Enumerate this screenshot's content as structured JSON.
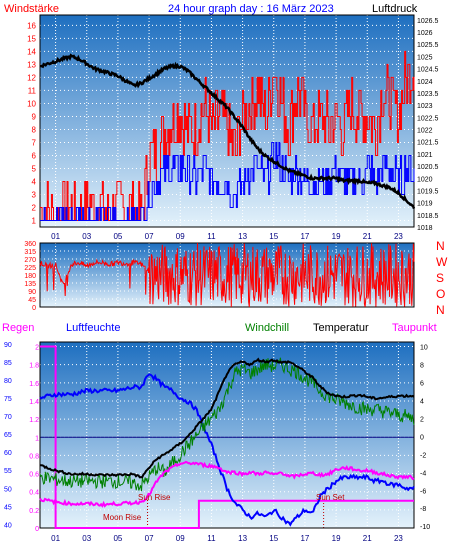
{
  "header": {
    "left_label": "Windstärke",
    "title": "24 hour graph day : 16 März 2023",
    "right_label": "Luftdruck"
  },
  "middle": {
    "compass": [
      "N",
      "W",
      "S",
      "O",
      "N"
    ]
  },
  "bottom_header": {
    "regen": "Regen",
    "luftfeuchte": "Luftfeuchte",
    "windchill": "Windchill",
    "temperatur": "Temperatur",
    "taupunkt": "Taupunkt"
  },
  "colors": {
    "wind_gust": "#ff0000",
    "wind_avg": "#0000ff",
    "pressure": "#000000",
    "direction": "#ff0000",
    "rain": "#ff00ff",
    "humidity": "#0000ff",
    "windchill": "#008000",
    "temperature": "#000000",
    "dewpoint": "#ff00ff",
    "sky_top": "#1e6fc0",
    "sky_bottom": "#e4f2fb"
  },
  "chart_data": [
    {
      "type": "line",
      "title": "24 hour graph day : 16 März 2023",
      "x_ticks": [
        "01",
        "03",
        "05",
        "07",
        "09",
        "11",
        "13",
        "15",
        "17",
        "19",
        "21",
        "23"
      ],
      "xlim": [
        0,
        24
      ],
      "y_left_label": "Windstärke",
      "y_left_ticks": [
        "1",
        "2",
        "3",
        "4",
        "5",
        "6",
        "7",
        "8",
        "9",
        "10",
        "11",
        "12",
        "13",
        "14",
        "15",
        "16"
      ],
      "y_left_lim": [
        0.5,
        16.8
      ],
      "y_right_label": "Luftdruck",
      "y_right_ticks": [
        "1018",
        "1018.5",
        "1019",
        "1019.5",
        "1020",
        "1020.5",
        "1021",
        "1021.5",
        "1022",
        "1022.5",
        "1023",
        "1023.5",
        "1024",
        "1024.5",
        "1025",
        "1025.5",
        "1026",
        "1026.5"
      ],
      "y_right_lim": [
        1018,
        1026.7
      ],
      "grid": true,
      "series": [
        {
          "name": "Luftdruck",
          "axis": "right",
          "x": [
            0,
            0.5,
            1,
            1.5,
            2,
            2.5,
            3,
            3.5,
            4,
            4.5,
            5,
            5.5,
            6,
            6.5,
            7,
            7.5,
            8,
            8.5,
            9,
            9.5,
            10,
            10.5,
            11,
            11.5,
            12,
            12.5,
            13,
            13.5,
            14,
            14.5,
            15,
            15.5,
            16,
            16.5,
            17,
            17.5,
            18,
            18.5,
            19,
            19.5,
            20,
            20.5,
            21,
            21.5,
            22,
            22.5,
            23,
            23.5,
            24
          ],
          "values": [
            1024.6,
            1024.7,
            1024.8,
            1024.9,
            1025.0,
            1024.9,
            1024.7,
            1024.5,
            1024.4,
            1024.3,
            1024.2,
            1024.0,
            1023.8,
            1023.9,
            1024.1,
            1024.3,
            1024.5,
            1024.6,
            1024.6,
            1024.4,
            1024.1,
            1023.8,
            1023.5,
            1023.2,
            1022.9,
            1022.5,
            1022.1,
            1021.6,
            1021.2,
            1020.9,
            1020.7,
            1020.5,
            1020.3,
            1020.2,
            1020.1,
            1020.0,
            1020.0,
            1020.0,
            1020.0,
            1019.9,
            1019.9,
            1019.9,
            1019.8,
            1019.8,
            1019.7,
            1019.6,
            1019.4,
            1019.1,
            1018.8
          ]
        },
        {
          "name": "Windböen",
          "axis": "left",
          "x": [
            0,
            0.5,
            1,
            1.5,
            2,
            2.5,
            3,
            3.5,
            4,
            4.5,
            5,
            5.5,
            6,
            6.5,
            7,
            7.5,
            8,
            8.5,
            9,
            9.5,
            10,
            10.5,
            11,
            11.5,
            12,
            12.5,
            13,
            13.5,
            14,
            14.5,
            15,
            15.5,
            16,
            16.5,
            17,
            17.5,
            18,
            18.5,
            19,
            19.5,
            20,
            20.5,
            21,
            21.5,
            22,
            22.5,
            23,
            23.5,
            24
          ],
          "values": [
            2,
            2,
            1,
            2,
            2,
            1,
            2,
            2,
            2,
            1,
            2,
            2,
            2,
            1,
            6,
            6,
            8,
            9,
            9,
            8,
            8,
            10,
            8,
            9,
            8,
            6,
            9,
            10,
            11,
            9,
            13,
            10,
            8,
            11,
            9,
            8,
            9,
            8,
            9,
            8,
            10,
            9,
            9,
            8,
            11,
            10,
            9,
            12,
            13
          ]
        },
        {
          "name": "Windmittel",
          "axis": "left",
          "x": [
            0,
            0.5,
            1,
            1.5,
            2,
            2.5,
            3,
            3.5,
            4,
            4.5,
            5,
            5.5,
            6,
            6.5,
            7,
            7.5,
            8,
            8.5,
            9,
            9.5,
            10,
            10.5,
            11,
            11.5,
            12,
            12.5,
            13,
            13.5,
            14,
            14.5,
            15,
            15.5,
            16,
            16.5,
            17,
            17.5,
            18,
            18.5,
            19,
            19.5,
            20,
            20.5,
            21,
            21.5,
            22,
            22.5,
            23,
            23.5,
            24
          ],
          "values": [
            1,
            1,
            1,
            1,
            1,
            1,
            1,
            1,
            1,
            1,
            1,
            1,
            1,
            1,
            3,
            4,
            5,
            5,
            5,
            5,
            4,
            5,
            4,
            4,
            4,
            3,
            4,
            5,
            5,
            4,
            6,
            5,
            4,
            5,
            4,
            4,
            4,
            4,
            5,
            4,
            4,
            4,
            5,
            4,
            5,
            5,
            4,
            5,
            5
          ]
        }
      ]
    },
    {
      "type": "line",
      "y_left_ticks": [
        "0",
        "45",
        "90",
        "135",
        "180",
        "225",
        "270",
        "315",
        "360"
      ],
      "y_left_lim": [
        0,
        360
      ],
      "xlim": [
        0,
        24
      ],
      "grid": true,
      "compass_labels": [
        "N",
        "W",
        "S",
        "O",
        "N"
      ],
      "series": [
        {
          "name": "Windrichtung",
          "x": [
            0,
            0.5,
            1,
            1.5,
            2,
            2.5,
            3,
            3.5,
            4,
            4.5,
            5,
            5.5,
            6,
            6.5,
            7,
            7.5,
            8,
            8.5,
            9,
            9.5,
            10,
            10.5,
            11,
            11.5,
            12,
            12.5,
            13,
            13.5,
            14,
            14.5,
            15,
            15.5,
            16,
            16.5,
            17,
            17.5,
            18,
            18.5,
            19,
            19.5,
            20,
            20.5,
            21,
            21.5,
            22,
            22.5,
            23,
            23.5,
            24
          ],
          "values": [
            250,
            230,
            240,
            120,
            240,
            250,
            230,
            250,
            250,
            240,
            250,
            245,
            250,
            240,
            200,
            60,
            300,
            20,
            270,
            60,
            300,
            100,
            280,
            40,
            300,
            80,
            260,
            30,
            310,
            70,
            280,
            20,
            300,
            90,
            260,
            50,
            300,
            110,
            270,
            40,
            290,
            80,
            300,
            60,
            260,
            30,
            280,
            100,
            300
          ]
        }
      ]
    },
    {
      "type": "line",
      "x_ticks": [
        "01",
        "03",
        "05",
        "07",
        "09",
        "11",
        "13",
        "15",
        "17",
        "19",
        "21",
        "23"
      ],
      "xlim": [
        0,
        24
      ],
      "y_regen_ticks": [
        "0",
        "0.2",
        "0.4",
        "0.6",
        "0.8",
        "1",
        "1.2",
        "1.4",
        "1.6",
        "1.8",
        "2"
      ],
      "y_regen_lim": [
        0,
        2.05
      ],
      "y_luftfeuchte_ticks": [
        "40",
        "45",
        "50",
        "55",
        "60",
        "65",
        "70",
        "75",
        "80",
        "85",
        "90"
      ],
      "y_luftfeuchte_lim": [
        39,
        90.5
      ],
      "y_temp_ticks": [
        "-10",
        "-8",
        "-6",
        "-4",
        "-2",
        "0",
        "2",
        "4",
        "6",
        "8",
        "10"
      ],
      "y_temp_lim": [
        -10.2,
        10.5
      ],
      "annotations": [
        {
          "text": "Moon Rise",
          "x": 6.9
        },
        {
          "text": "Sun Rise",
          "x": 6.9
        },
        {
          "text": "Sun Set",
          "x": 18.2
        }
      ],
      "grid": true,
      "series": [
        {
          "name": "Luftfeuchte",
          "axis": "luftfeuchte",
          "x": [
            0,
            1,
            2,
            3,
            4,
            5,
            6,
            6.5,
            7,
            7.5,
            8,
            8.5,
            9,
            9.5,
            10,
            10.5,
            11,
            11.5,
            12,
            12.5,
            13,
            13.5,
            14,
            14.5,
            15,
            15.5,
            16,
            16.5,
            17,
            17.5,
            18,
            18.5,
            19,
            19.5,
            20,
            20.5,
            21,
            21.5,
            22,
            22.5,
            23,
            23.5,
            24
          ],
          "values": [
            75,
            76,
            76,
            77,
            77,
            77,
            78,
            78,
            82,
            80,
            78,
            77,
            75,
            74,
            72,
            67,
            62,
            56,
            50,
            46,
            44,
            42,
            43,
            42,
            44,
            42,
            40,
            42,
            44,
            43,
            48,
            50,
            52,
            53,
            53,
            53,
            53,
            52,
            52,
            51,
            51,
            50,
            50
          ]
        },
        {
          "name": "Windchill",
          "axis": "temp",
          "x": [
            0,
            1,
            2,
            3,
            4,
            5,
            6,
            6.5,
            7,
            7.5,
            8,
            8.5,
            9,
            9.5,
            10,
            10.5,
            11,
            11.5,
            12,
            12.5,
            13,
            13.5,
            14,
            14.5,
            15,
            15.5,
            16,
            16.5,
            17,
            17.5,
            18,
            18.5,
            19,
            19.5,
            20,
            20.5,
            21,
            21.5,
            22,
            22.5,
            23,
            23.5,
            24
          ],
          "values": [
            -4.5,
            -4.8,
            -5,
            -5,
            -5,
            -5,
            -5.2,
            -5.5,
            -4.5,
            -3.5,
            -4,
            -3,
            -2,
            -1,
            0,
            1,
            2,
            3,
            5,
            7,
            7.5,
            7,
            7.5,
            8,
            7.8,
            8,
            7.5,
            7.2,
            6.5,
            6,
            5,
            4.5,
            4,
            3.8,
            3.5,
            3.2,
            3,
            3,
            2.8,
            2.6,
            2.4,
            2.2,
            2
          ]
        },
        {
          "name": "Temperatur",
          "axis": "temp",
          "x": [
            0,
            1,
            2,
            3,
            4,
            5,
            6,
            6.5,
            7,
            7.5,
            8,
            8.5,
            9,
            9.5,
            10,
            10.5,
            11,
            11.5,
            12,
            12.5,
            13,
            13.5,
            14,
            14.5,
            15,
            15.5,
            16,
            16.5,
            17,
            17.5,
            18,
            18.5,
            19,
            19.5,
            20,
            20.5,
            21,
            21.5,
            22,
            22.5,
            23,
            23.5,
            24
          ],
          "values": [
            -3.2,
            -3.8,
            -4.2,
            -4.2,
            -4.3,
            -4.3,
            -4.2,
            -4.6,
            -3.5,
            -2.5,
            -2,
            -1.4,
            -0.8,
            0,
            1,
            2,
            3,
            5,
            7,
            8,
            8.3,
            8,
            8.5,
            8.3,
            8.5,
            8.2,
            8.3,
            7.8,
            7.2,
            6.5,
            5.5,
            4.8,
            4.5,
            4.4,
            4.5,
            4.6,
            4.4,
            4.2,
            4.3,
            4.4,
            4.5,
            4.5,
            4.5
          ]
        },
        {
          "name": "Taupunkt",
          "axis": "temp",
          "x": [
            0,
            1,
            2,
            3,
            4,
            5,
            6,
            6.5,
            7,
            7.5,
            8,
            8.5,
            9,
            9.5,
            10,
            10.5,
            11,
            11.5,
            12,
            12.5,
            13,
            13.5,
            14,
            14.5,
            15,
            15.5,
            16,
            16.5,
            17,
            17.5,
            18,
            18.5,
            19,
            19.5,
            20,
            20.5,
            21,
            21.5,
            22,
            22.5,
            23,
            23.5,
            24
          ],
          "values": [
            -7,
            -7.3,
            -7.5,
            -7.5,
            -7.6,
            -7.5,
            -7.4,
            -7.3,
            -6.5,
            -5,
            -4,
            -3.5,
            -3,
            -3,
            -3,
            -3.2,
            -3.3,
            -3.5,
            -4,
            -4,
            -4.2,
            -4,
            -4.2,
            -4,
            -4.3,
            -4,
            -4.5,
            -4.4,
            -4.2,
            -4.1,
            -4.3,
            -4.2,
            -3.7,
            -3.5,
            -3.6,
            -3.8,
            -3.8,
            -4,
            -4.2,
            -4.4,
            -4.5,
            -4.5,
            -4.6
          ]
        },
        {
          "name": "Regen",
          "axis": "regen",
          "x": [
            0,
            1,
            1,
            6.9,
            6.9,
            10.2,
            10.2,
            18.2,
            18.2,
            24
          ],
          "values": [
            2,
            2,
            0,
            0,
            0,
            0,
            0.3,
            0.3,
            0.3,
            0.3
          ]
        }
      ]
    }
  ]
}
